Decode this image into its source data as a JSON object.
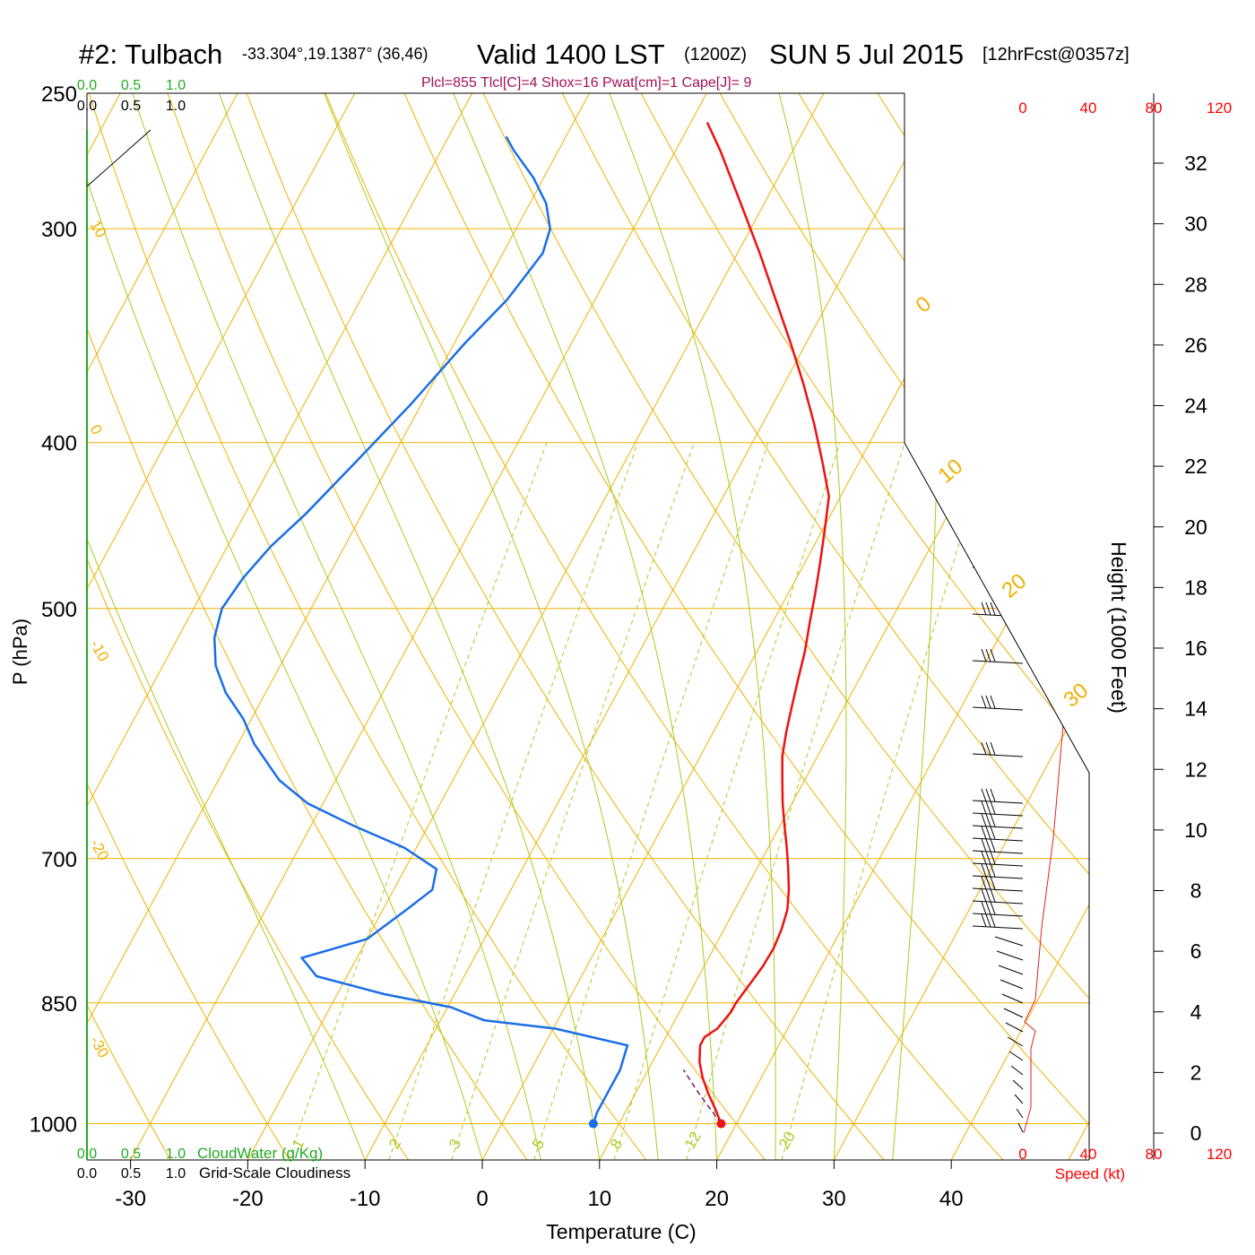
{
  "header": {
    "station": "#2: Tulbach",
    "coords": "-33.304°,19.1387° (36,46)",
    "valid": "Valid 1400 LST",
    "zulu": "(1200Z)",
    "date": "SUN 5 Jul 2015",
    "forecast": "[12hrFcst@0357z]",
    "indices": "Plcl=855 Tlcl[C]=4 Shox=16 Pwat[cm]=1 Cape[J]= 9"
  },
  "cloud_scale": {
    "ticks": [
      "0.0",
      "0.5",
      "1.0"
    ],
    "cloudwater_label": "CloudWater (g/Kg)",
    "cloudiness_label": "Grid-Scale Cloudiness",
    "color_cloudwater": "#22aa22",
    "color_cloudiness": "#000000"
  },
  "speed_scale": {
    "ticks": [
      "0",
      "40",
      "80",
      "120"
    ],
    "label": "Speed (kt)",
    "color": "#ff0000"
  },
  "colors": {
    "temperature": "#ee1111",
    "dewpoint": "#1a6ee8",
    "isotherm_adiabat": "#f0b000",
    "moist_adiabat": "#a8cc20",
    "mixing_ratio": "#a8cc20",
    "frame": "#000000"
  },
  "chart_data": {
    "type": "line",
    "subtype": "skew-T log-P sounding",
    "xlabel": "Temperature (C)",
    "ylabel": "P (hPa)",
    "y2label": "Height (1000 Feet)",
    "x_ticks": [
      -30,
      -20,
      -10,
      0,
      10,
      20,
      30,
      40
    ],
    "p_ticks": [
      250,
      300,
      400,
      500,
      700,
      850,
      1000
    ],
    "height_ticks": [
      0,
      2,
      4,
      6,
      8,
      10,
      12,
      14,
      16,
      18,
      20,
      22,
      24,
      26,
      28,
      30,
      32
    ],
    "ylim_hpa": [
      1050,
      250
    ],
    "y_scale": "log",
    "dry_adiabat_labels": [
      "10",
      "0",
      "-10",
      "-20",
      "-30"
    ],
    "upper_adiabat_labels": [
      "0",
      "10",
      "20",
      "30"
    ],
    "mixing_ratio_labels": [
      "1",
      "2",
      "3",
      "5",
      "8",
      "12",
      "20"
    ],
    "series": [
      {
        "name": "Temperature",
        "points": [
          [
            1000,
            18.7
          ],
          [
            980,
            17.5
          ],
          [
            960,
            16.2
          ],
          [
            940,
            15.0
          ],
          [
            920,
            14.0
          ],
          [
            900,
            13.3
          ],
          [
            890,
            13.3
          ],
          [
            880,
            14.0
          ],
          [
            860,
            14.4
          ],
          [
            850,
            14.4
          ],
          [
            830,
            14.7
          ],
          [
            810,
            15.0
          ],
          [
            790,
            15.1
          ],
          [
            770,
            14.9
          ],
          [
            750,
            14.5
          ],
          [
            730,
            13.7
          ],
          [
            710,
            12.7
          ],
          [
            690,
            11.6
          ],
          [
            670,
            10.4
          ],
          [
            650,
            9.2
          ],
          [
            630,
            8.1
          ],
          [
            610,
            7.0
          ],
          [
            590,
            6.2
          ],
          [
            570,
            5.5
          ],
          [
            550,
            4.8
          ],
          [
            530,
            4.1
          ],
          [
            510,
            3.2
          ],
          [
            490,
            2.3
          ],
          [
            470,
            1.3
          ],
          [
            450,
            0.2
          ],
          [
            430,
            -1.0
          ],
          [
            410,
            -3.2
          ],
          [
            390,
            -5.6
          ],
          [
            370,
            -8.3
          ],
          [
            350,
            -11.3
          ],
          [
            330,
            -14.6
          ],
          [
            310,
            -18.1
          ],
          [
            290,
            -22.0
          ],
          [
            270,
            -26.2
          ],
          [
            260,
            -28.6
          ]
        ]
      },
      {
        "name": "Dewpoint",
        "points": [
          [
            1000,
            7.8
          ],
          [
            985,
            7.6
          ],
          [
            960,
            7.6
          ],
          [
            930,
            7.6
          ],
          [
            900,
            7.1
          ],
          [
            880,
            0.2
          ],
          [
            870,
            -6.3
          ],
          [
            855,
            -9.7
          ],
          [
            840,
            -16.0
          ],
          [
            820,
            -22.6
          ],
          [
            800,
            -24.7
          ],
          [
            780,
            -20.0
          ],
          [
            750,
            -18.0
          ],
          [
            730,
            -16.7
          ],
          [
            710,
            -17.3
          ],
          [
            690,
            -21.0
          ],
          [
            670,
            -26.3
          ],
          [
            650,
            -31.3
          ],
          [
            630,
            -34.8
          ],
          [
            600,
            -38.6
          ],
          [
            580,
            -40.7
          ],
          [
            560,
            -43.4
          ],
          [
            540,
            -45.5
          ],
          [
            520,
            -46.9
          ],
          [
            500,
            -47.6
          ],
          [
            480,
            -47.2
          ],
          [
            460,
            -46.3
          ],
          [
            440,
            -44.8
          ],
          [
            410,
            -42.9
          ],
          [
            380,
            -40.9
          ],
          [
            350,
            -39.1
          ],
          [
            330,
            -37.5
          ],
          [
            310,
            -36.6
          ],
          [
            300,
            -37.1
          ],
          [
            290,
            -38.6
          ],
          [
            280,
            -40.9
          ],
          [
            270,
            -43.8
          ],
          [
            265,
            -45.1
          ]
        ]
      }
    ],
    "surface_points": {
      "temperature": [
        1000,
        18.7
      ],
      "dewpoint": [
        1000,
        7.8
      ]
    }
  }
}
